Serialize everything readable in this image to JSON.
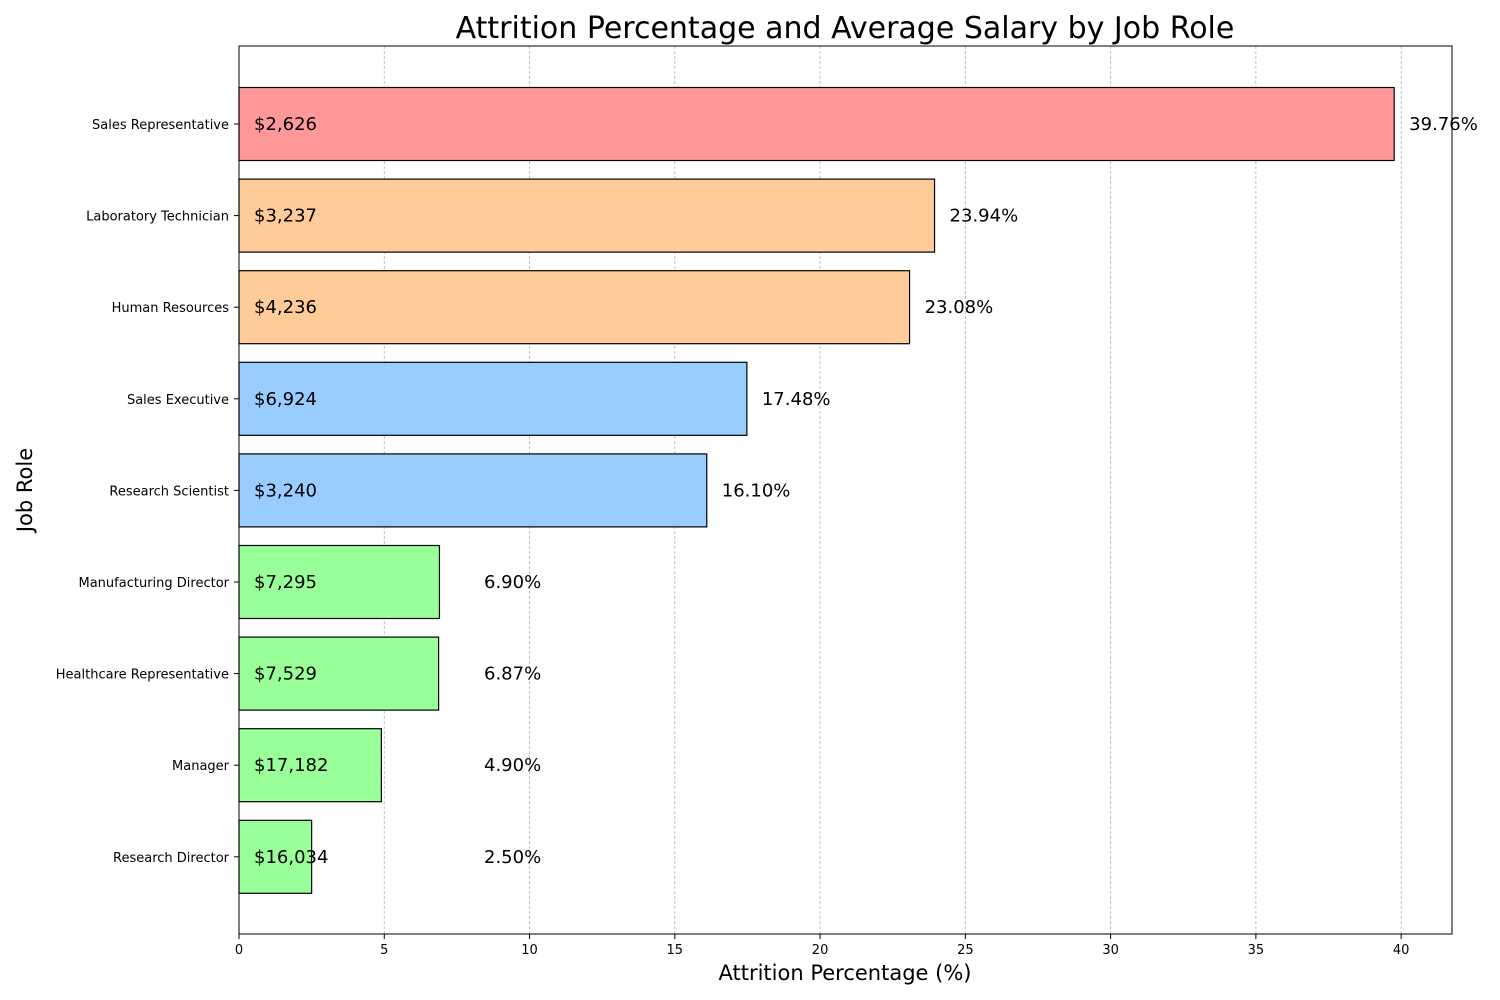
{
  "chart_data": {
    "type": "bar",
    "orientation": "horizontal",
    "title": "Attrition Percentage and Average Salary by Job Role",
    "xlabel": "Attrition Percentage (%)",
    "ylabel": "Job Role",
    "xlim": [
      0,
      41.75
    ],
    "xticks": [
      0,
      5,
      10,
      15,
      20,
      25,
      30,
      35,
      40
    ],
    "grid": "x-dashed",
    "categories": [
      "Sales Representative",
      "Laboratory Technician",
      "Human Resources",
      "Sales Executive",
      "Research Scientist",
      "Manufacturing Director",
      "Healthcare Representative",
      "Manager",
      "Research Director"
    ],
    "values": [
      39.76,
      23.94,
      23.08,
      17.48,
      16.1,
      6.9,
      6.87,
      4.9,
      2.5
    ],
    "value_labels": [
      "39.76%",
      "23.94%",
      "23.08%",
      "17.48%",
      "16.10%",
      "6.90%",
      "6.87%",
      "4.90%",
      "2.50%"
    ],
    "salary_labels": [
      "$2,626",
      "$3,237",
      "$4,236",
      "$6,924",
      "$3,240",
      "$7,295",
      "$7,529",
      "$17,182",
      "$16,034"
    ],
    "colors": [
      "#ff9999",
      "#ffcc99",
      "#ffcc99",
      "#99ccff",
      "#99ccff",
      "#99ff99",
      "#99ff99",
      "#99ff99",
      "#99ff99"
    ]
  }
}
